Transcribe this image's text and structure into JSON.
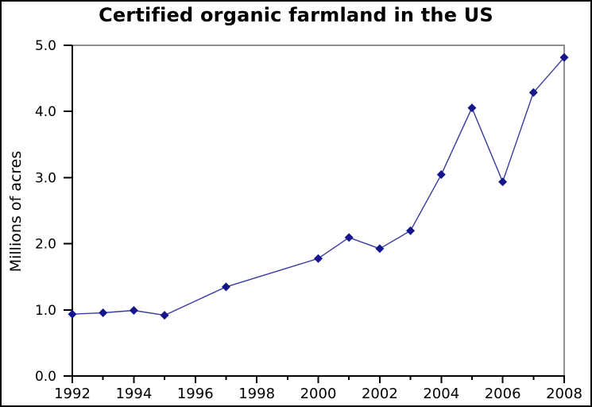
{
  "chart_data": {
    "type": "line",
    "title": "Certified organic farmland in the US",
    "ylabel": "Millions of acres",
    "xlabel": "",
    "series": [
      {
        "name": "Certified organic farmland",
        "points": [
          {
            "year": 1992,
            "value": 0.935
          },
          {
            "year": 1993,
            "value": 0.956
          },
          {
            "year": 1994,
            "value": 0.991
          },
          {
            "year": 1995,
            "value": 0.918
          },
          {
            "year": 1997,
            "value": 1.347
          },
          {
            "year": 2000,
            "value": 1.776
          },
          {
            "year": 2001,
            "value": 2.094
          },
          {
            "year": 2002,
            "value": 1.926
          },
          {
            "year": 2003,
            "value": 2.197
          },
          {
            "year": 2004,
            "value": 3.045
          },
          {
            "year": 2005,
            "value": 4.054
          },
          {
            "year": 2006,
            "value": 2.936
          },
          {
            "year": 2007,
            "value": 4.286
          },
          {
            "year": 2008,
            "value": 4.816
          }
        ]
      }
    ],
    "xlim": [
      1992,
      2008
    ],
    "ylim": [
      0.0,
      5.0
    ],
    "x_major_ticks": [
      1992,
      1994,
      1996,
      1998,
      2000,
      2002,
      2004,
      2006,
      2008
    ],
    "x_tick_labels": [
      "1992",
      "1994",
      "1996",
      "1998",
      "2000",
      "2002",
      "2004",
      "2006",
      "2008"
    ],
    "x_minor_ticks": [
      1993,
      1995,
      1997,
      1999,
      2001,
      2003,
      2005,
      2007
    ],
    "y_ticks": [
      0.0,
      1.0,
      2.0,
      3.0,
      4.0,
      5.0
    ],
    "y_tick_labels": [
      "0.0",
      "1.0",
      "2.0",
      "3.0",
      "4.0",
      "5.0"
    ],
    "grid": false,
    "legend": "none",
    "marker": "diamond",
    "colors": {
      "line": "#3a3aa0",
      "marker": "#16168c",
      "axis": "#000000",
      "frame_top_right": "#8f8f8f",
      "background": "#ffffff",
      "text": "#000000"
    }
  }
}
